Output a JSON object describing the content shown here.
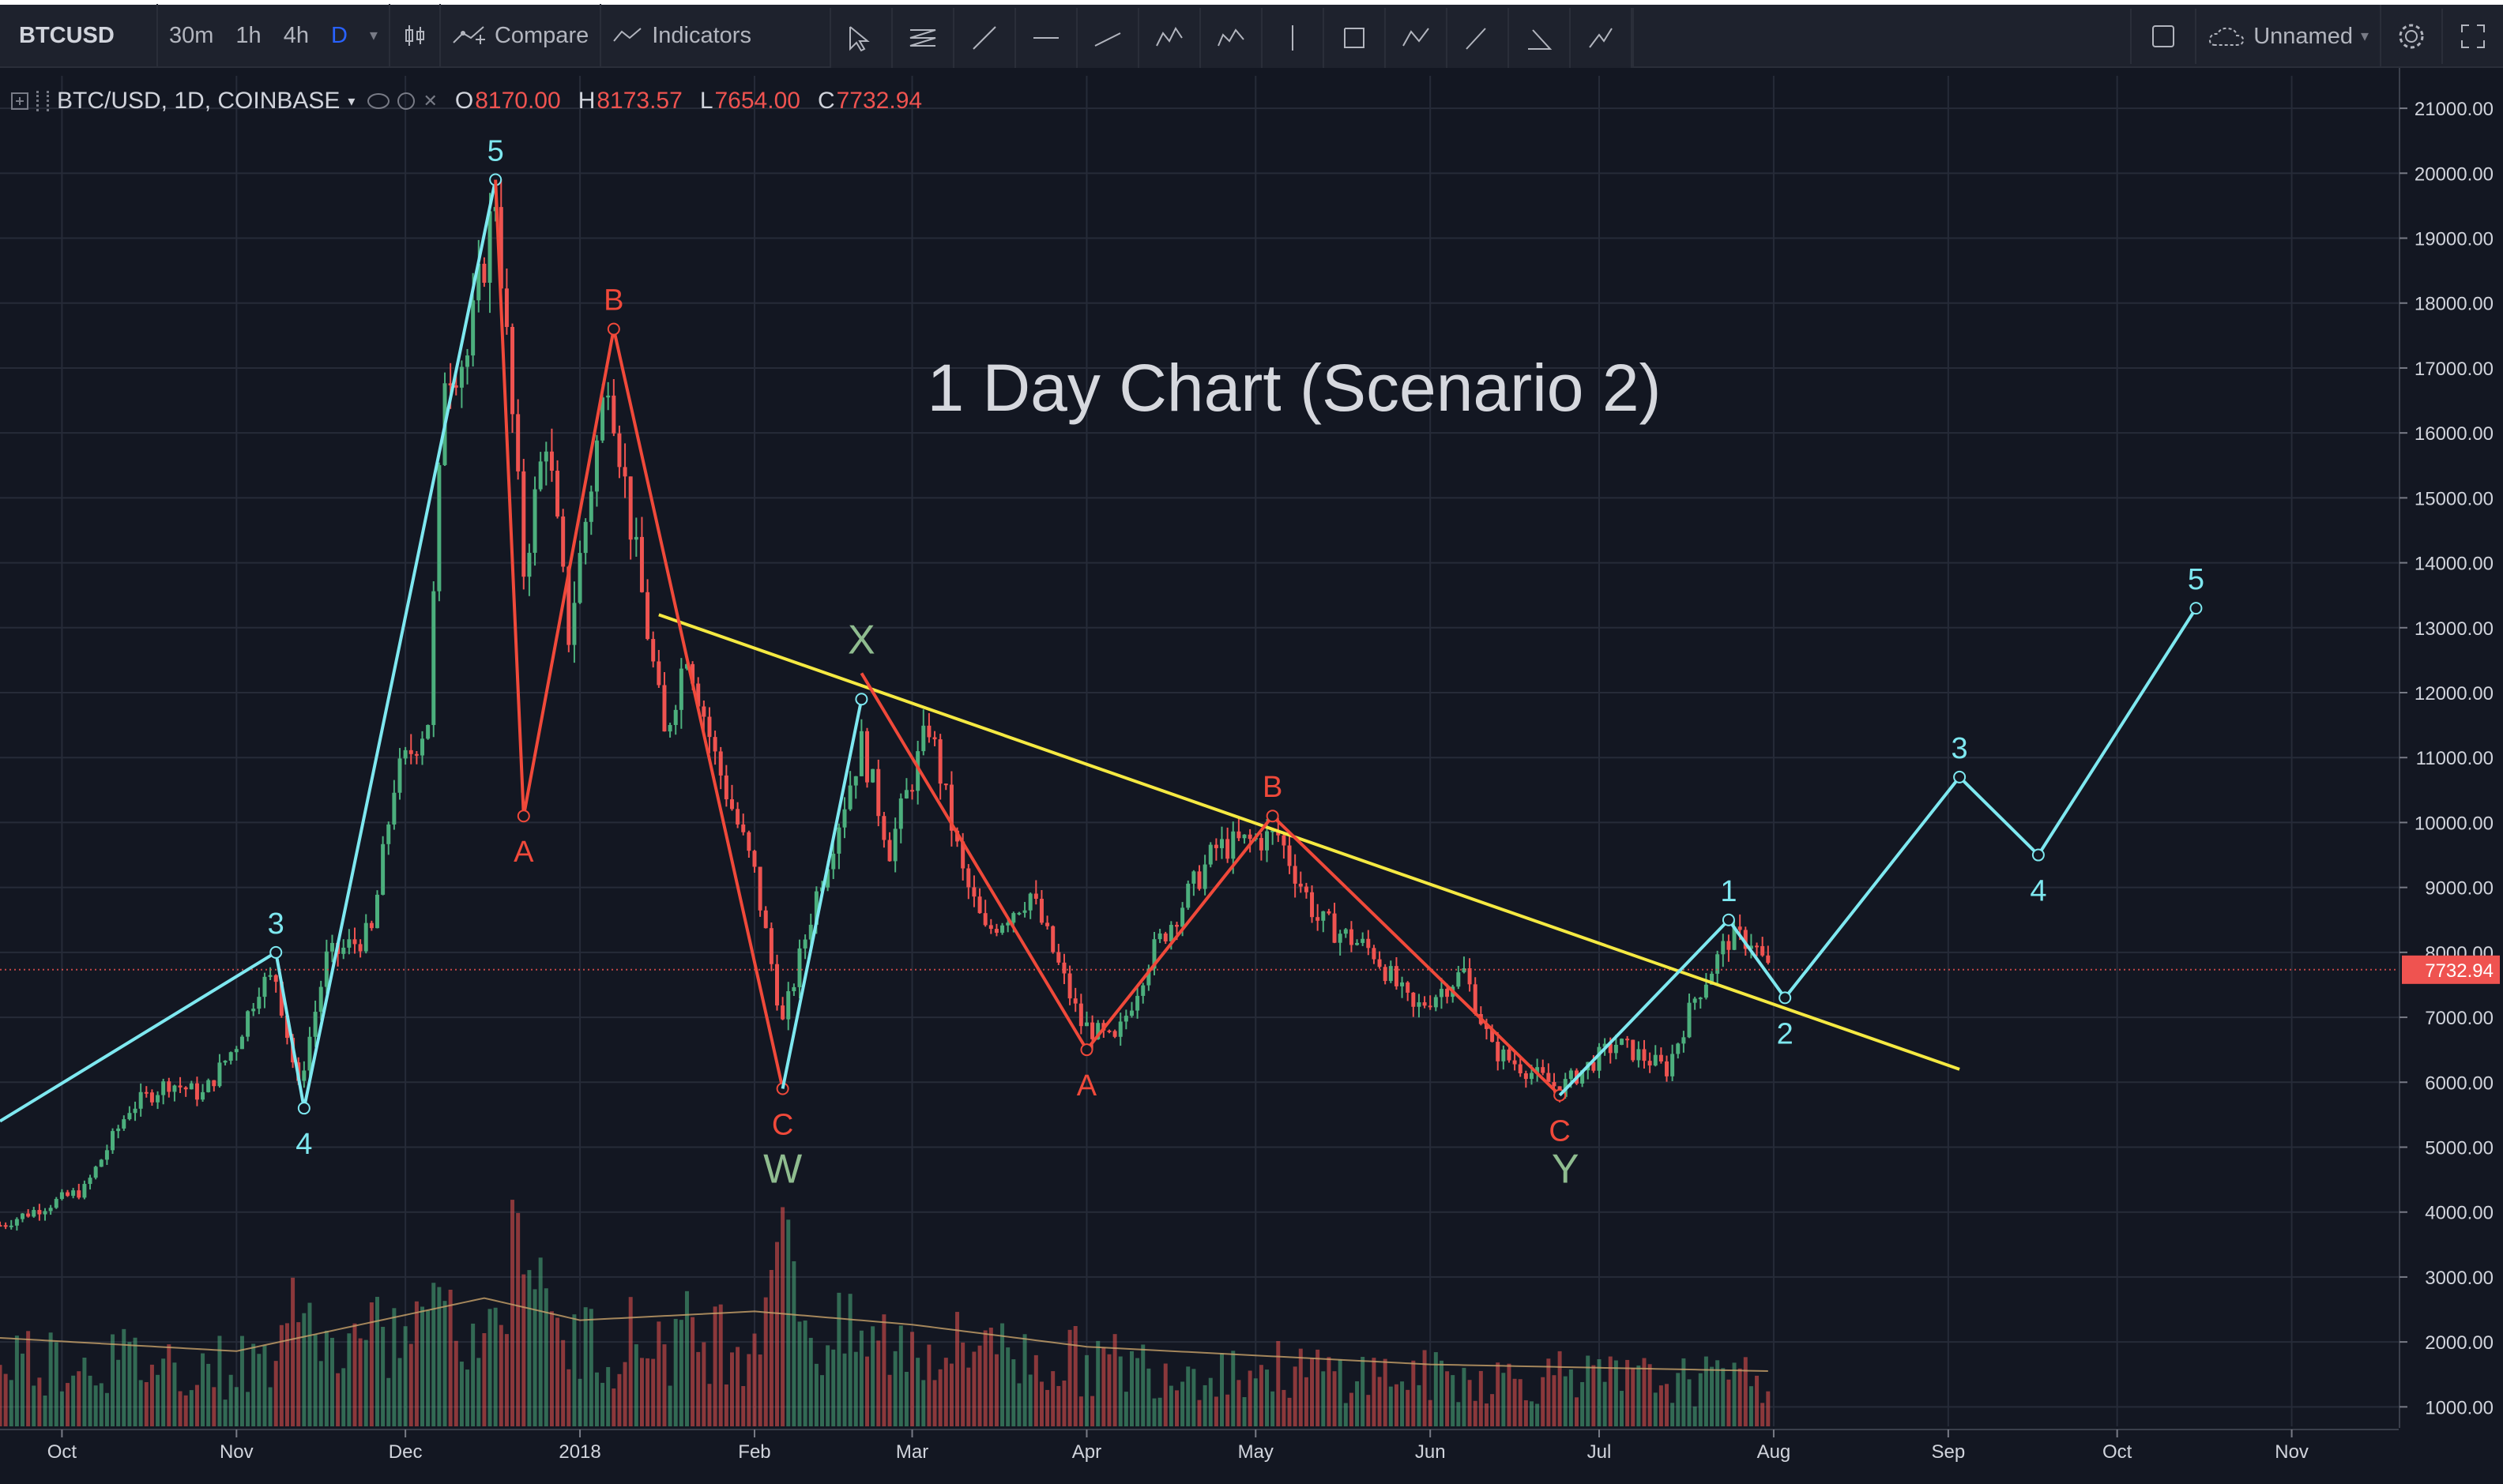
{
  "toolbar": {
    "symbol": "BTCUSD",
    "intervals": [
      "30m",
      "1h",
      "4h",
      "D"
    ],
    "active_interval": "D",
    "compare_label": "Compare",
    "indicators_label": "Indicators",
    "layout_name": "Unnamed",
    "drawing_tools": [
      "cursor-icon",
      "horizontal-lines-icon",
      "trend-line-icon",
      "horizontal-ray-icon",
      "channel-icon",
      "pattern-icon",
      "elliott-icon",
      "measure-icon",
      "rectangle-icon",
      "abc-pattern-icon",
      "brush-icon",
      "angle-icon",
      "path-icon"
    ]
  },
  "legend": {
    "symbol": "BTC/USD, 1D, COINBASE",
    "o_label": "O",
    "o_value": "8170.00",
    "h_label": "H",
    "h_value": "8173.57",
    "l_label": "L",
    "l_value": "7654.00",
    "c_label": "C",
    "c_value": "7732.94"
  },
  "colors": {
    "background": "#131722",
    "up": "#26a69a",
    "up_candle": "#4caf7d",
    "down": "#ef5350",
    "wave_cyan": "#7ee8f0",
    "wave_red": "#f0493a",
    "trendline": "#f5e942",
    "wx_green": "#8fbc8f",
    "grid": "#262b38"
  },
  "chart_data": {
    "type": "candlestick",
    "title": "1 Day Chart (Scenario 2)",
    "symbol": "BTC/USD",
    "interval": "1D",
    "exchange": "COINBASE",
    "last_price": 7732.94,
    "last_price_label": "7732.94",
    "ylim": [
      700,
      21500
    ],
    "y_ticks": [
      1000,
      2000,
      3000,
      4000,
      5000,
      6000,
      7000,
      8000,
      9000,
      10000,
      11000,
      12000,
      13000,
      14000,
      15000,
      16000,
      17000,
      18000,
      19000,
      20000,
      21000
    ],
    "y_tick_labels": [
      "1000.00",
      "2000.00",
      "3000.00",
      "4000.00",
      "5000.00",
      "6000.00",
      "7000.00",
      "8000.00",
      "9000.00",
      "10000.00",
      "11000.00",
      "12000.00",
      "13000.00",
      "14000.00",
      "15000.00",
      "16000.00",
      "17000.00",
      "18000.00",
      "19000.00",
      "20000.00",
      "21000.00"
    ],
    "x_range": [
      "2017-09-20",
      "2018-11-20"
    ],
    "x_ticks": [
      {
        "date": "2017-10-01",
        "label": "Oct"
      },
      {
        "date": "2017-11-01",
        "label": "Nov"
      },
      {
        "date": "2017-12-01",
        "label": "Dec"
      },
      {
        "date": "2018-01-01",
        "label": "2018"
      },
      {
        "date": "2018-02-01",
        "label": "Feb"
      },
      {
        "date": "2018-03-01",
        "label": "Mar"
      },
      {
        "date": "2018-04-01",
        "label": "Apr"
      },
      {
        "date": "2018-05-01",
        "label": "May"
      },
      {
        "date": "2018-06-01",
        "label": "Jun"
      },
      {
        "date": "2018-07-01",
        "label": "Jul"
      },
      {
        "date": "2018-08-01",
        "label": "Aug"
      },
      {
        "date": "2018-09-01",
        "label": "Sep"
      },
      {
        "date": "2018-10-01",
        "label": "Oct"
      },
      {
        "date": "2018-11-01",
        "label": "Nov"
      }
    ],
    "price_path": [
      [
        "2017-09-20",
        3800
      ],
      [
        "2017-10-05",
        4350
      ],
      [
        "2017-10-13",
        5600
      ],
      [
        "2017-10-20",
        6000
      ],
      [
        "2017-10-26",
        5800
      ],
      [
        "2017-11-01",
        6600
      ],
      [
        "2017-11-05",
        7500
      ],
      [
        "2017-11-08",
        7600
      ],
      [
        "2017-11-12",
        5900
      ],
      [
        "2017-11-17",
        7900
      ],
      [
        "2017-11-25",
        8300
      ],
      [
        "2017-11-29",
        10600
      ],
      [
        "2017-12-05",
        11600
      ],
      [
        "2017-12-08",
        17000
      ],
      [
        "2017-12-12",
        17200
      ],
      [
        "2017-12-17",
        19700
      ],
      [
        "2017-12-22",
        13900
      ],
      [
        "2017-12-26",
        16000
      ],
      [
        "2017-12-30",
        12900
      ],
      [
        "2018-01-06",
        17000
      ],
      [
        "2018-01-10",
        14600
      ],
      [
        "2018-01-16",
        11300
      ],
      [
        "2018-01-20",
        12700
      ],
      [
        "2018-01-25",
        11000
      ],
      [
        "2018-02-01",
        9200
      ],
      [
        "2018-02-06",
        6900
      ],
      [
        "2018-02-12",
        8900
      ],
      [
        "2018-02-20",
        11200
      ],
      [
        "2018-02-25",
        9600
      ],
      [
        "2018-03-04",
        11500
      ],
      [
        "2018-03-10",
        9200
      ],
      [
        "2018-03-14",
        8300
      ],
      [
        "2018-03-22",
        8900
      ],
      [
        "2018-03-31",
        6900
      ],
      [
        "2018-04-06",
        6600
      ],
      [
        "2018-04-12",
        7900
      ],
      [
        "2018-04-24",
        9600
      ],
      [
        "2018-05-05",
        9800
      ],
      [
        "2018-05-12",
        8500
      ],
      [
        "2018-05-22",
        8000
      ],
      [
        "2018-05-29",
        7100
      ],
      [
        "2018-06-07",
        7700
      ],
      [
        "2018-06-12",
        6500
      ],
      [
        "2018-06-24",
        5900
      ],
      [
        "2018-07-04",
        6600
      ],
      [
        "2018-07-13",
        6200
      ],
      [
        "2018-07-18",
        7300
      ],
      [
        "2018-07-24",
        8200
      ],
      [
        "2018-07-28",
        8200
      ],
      [
        "2018-07-31",
        7733
      ]
    ],
    "volume_axis_max": 7500,
    "volume_peaks": [
      [
        "2017-11-12",
        4000
      ],
      [
        "2017-12-07",
        5200
      ],
      [
        "2017-12-22",
        6500
      ],
      [
        "2018-02-06",
        7000
      ],
      [
        "2018-03-15",
        3000
      ],
      [
        "2018-06-24",
        1700
      ],
      [
        "2018-07-25",
        1700
      ]
    ],
    "volume_ma": [
      [
        "2017-09-20",
        2000
      ],
      [
        "2017-11-01",
        1700
      ],
      [
        "2017-12-15",
        2900
      ],
      [
        "2018-01-01",
        2400
      ],
      [
        "2018-02-01",
        2600
      ],
      [
        "2018-03-01",
        2300
      ],
      [
        "2018-04-01",
        1800
      ],
      [
        "2018-06-01",
        1400
      ],
      [
        "2018-07-31",
        1250
      ]
    ],
    "wave_overlays": [
      {
        "name": "impulse-2017",
        "color_key": "wave_cyan",
        "points": [
          [
            "2017-09-20",
            5400
          ],
          [
            "2017-11-08",
            8000
          ],
          [
            "2017-11-13",
            5600
          ],
          [
            "2017-12-17",
            19900
          ]
        ],
        "labels": [
          "",
          "3",
          "4",
          "5"
        ]
      },
      {
        "name": "wave-w",
        "color_key": "wave_red",
        "points": [
          [
            "2017-12-17",
            19900
          ],
          [
            "2017-12-22",
            10100
          ],
          [
            "2018-01-07",
            17600
          ],
          [
            "2018-02-06",
            5900
          ]
        ],
        "labels": [
          "",
          "A",
          "B",
          "C"
        ]
      },
      {
        "name": "wave-x",
        "color_key": "wave_cyan",
        "points": [
          [
            "2018-02-06",
            5900
          ],
          [
            "2018-02-20",
            11900
          ]
        ],
        "labels": [
          "",
          ""
        ]
      },
      {
        "name": "wave-y",
        "color_key": "wave_red",
        "points": [
          [
            "2018-02-20",
            12300
          ],
          [
            "2018-04-01",
            6500
          ],
          [
            "2018-05-04",
            10100
          ],
          [
            "2018-06-24",
            5800
          ]
        ],
        "labels": [
          "",
          "A",
          "B",
          "C"
        ]
      },
      {
        "name": "impulse-projection",
        "color_key": "wave_cyan",
        "points": [
          [
            "2018-06-24",
            5800
          ],
          [
            "2018-07-24",
            8500
          ],
          [
            "2018-08-03",
            7300
          ],
          [
            "2018-09-03",
            10700
          ],
          [
            "2018-09-17",
            9500
          ],
          [
            "2018-10-15",
            13300
          ]
        ],
        "labels": [
          "",
          "1",
          "2",
          "3",
          "4",
          "5"
        ]
      }
    ],
    "structure_labels": [
      {
        "text": "X",
        "date": "2018-02-20",
        "value": 12600
      },
      {
        "text": "W",
        "date": "2018-02-06",
        "value": 4450
      },
      {
        "text": "Y",
        "date": "2018-06-25",
        "value": 4450
      }
    ],
    "trendline": {
      "start": [
        "2018-01-15",
        13200
      ],
      "end": [
        "2018-09-03",
        6200
      ]
    }
  }
}
